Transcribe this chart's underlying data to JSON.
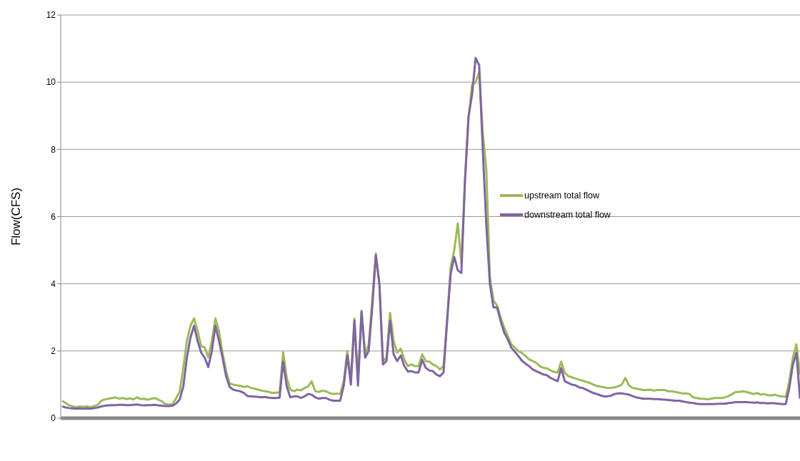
{
  "chart_data": {
    "type": "line",
    "ylabel": "Flow(CFS)",
    "ylim": [
      0,
      12
    ],
    "yticks": [
      0,
      2,
      4,
      6,
      8,
      10,
      12
    ],
    "grid": "y",
    "legend": "right",
    "tick_labels": "y",
    "marker": "none",
    "line_style": "solid",
    "categories": [
      null,
      null,
      null,
      null,
      null,
      null,
      null,
      null,
      null,
      null,
      null,
      null,
      null,
      null,
      null,
      null,
      null,
      null,
      null,
      null,
      null,
      null,
      null,
      null,
      null,
      null,
      null,
      null,
      null,
      null,
      null,
      null,
      null,
      null,
      null,
      null,
      null,
      null,
      null,
      null,
      null,
      null,
      null,
      null,
      null,
      null,
      null,
      null,
      null,
      null,
      null,
      null,
      null,
      null,
      null,
      null,
      null,
      null,
      null,
      null,
      null,
      null,
      null,
      null,
      null,
      null,
      null,
      null,
      null,
      null,
      null,
      null,
      null,
      null,
      null,
      null,
      null,
      null,
      null,
      null,
      null,
      null,
      null,
      null,
      null,
      null,
      null,
      null,
      null,
      null,
      null,
      null,
      null,
      null,
      null,
      null,
      null,
      null,
      null,
      null,
      null,
      null,
      null,
      null,
      null,
      null,
      null,
      null,
      null,
      null,
      null,
      null,
      null,
      null,
      null,
      null,
      null,
      null,
      null,
      null,
      null,
      null,
      null,
      null,
      null,
      null,
      null,
      null,
      null,
      null,
      null,
      null,
      null,
      null,
      null,
      null,
      null,
      null,
      null,
      null,
      null,
      null,
      null,
      null,
      null,
      null,
      null,
      null,
      null,
      null,
      null,
      null,
      null,
      null,
      null,
      null,
      null,
      null,
      null,
      null,
      null,
      null,
      null,
      null,
      null,
      null,
      null,
      null,
      null,
      null,
      null,
      null,
      null,
      null,
      null,
      null,
      null,
      null,
      null,
      null,
      null,
      null,
      null,
      null,
      null,
      null,
      null,
      null,
      null,
      null,
      null,
      null,
      null,
      null,
      null,
      null,
      null,
      null,
      null,
      null,
      null,
      null,
      null,
      null,
      null,
      null,
      null,
      null
    ],
    "series": [
      {
        "name": "upstream total flow",
        "color": "#9bbb59",
        "values": [
          0.52,
          0.45,
          0.38,
          0.35,
          0.33,
          0.35,
          0.34,
          0.35,
          0.33,
          0.36,
          0.4,
          0.52,
          0.56,
          0.58,
          0.6,
          0.62,
          0.58,
          0.6,
          0.57,
          0.59,
          0.56,
          0.62,
          0.57,
          0.58,
          0.55,
          0.58,
          0.6,
          0.55,
          0.5,
          0.42,
          0.4,
          0.42,
          0.6,
          0.8,
          1.5,
          2.3,
          2.75,
          2.97,
          2.6,
          2.15,
          2.1,
          1.81,
          2.3,
          2.97,
          2.6,
          1.94,
          1.4,
          1.03,
          1.0,
          0.98,
          0.96,
          0.93,
          0.95,
          0.9,
          0.88,
          0.85,
          0.82,
          0.8,
          0.78,
          0.75,
          0.76,
          0.77,
          1.97,
          1.2,
          0.85,
          0.8,
          0.85,
          0.83,
          0.9,
          0.94,
          1.1,
          0.8,
          0.78,
          0.82,
          0.8,
          0.75,
          0.72,
          0.73,
          0.72,
          1.1,
          2.0,
          1.16,
          2.97,
          1.16,
          3.2,
          1.9,
          2.2,
          3.5,
          4.9,
          4.0,
          1.7,
          1.8,
          3.13,
          2.3,
          1.95,
          2.07,
          1.75,
          1.55,
          1.6,
          1.55,
          1.55,
          1.9,
          1.7,
          1.68,
          1.6,
          1.55,
          1.45,
          1.55,
          2.9,
          4.5,
          5.0,
          5.8,
          4.6,
          7.04,
          8.9,
          9.92,
          10.0,
          10.3,
          8.5,
          7.4,
          4.2,
          3.5,
          3.36,
          3.0,
          2.7,
          2.45,
          2.2,
          2.1,
          2.0,
          1.94,
          1.85,
          1.75,
          1.7,
          1.65,
          1.55,
          1.5,
          1.48,
          1.42,
          1.38,
          1.36,
          1.68,
          1.35,
          1.25,
          1.22,
          1.18,
          1.15,
          1.12,
          1.08,
          1.05,
          1.0,
          0.96,
          0.94,
          0.92,
          0.9,
          0.9,
          0.92,
          0.95,
          1.0,
          1.2,
          0.98,
          0.9,
          0.88,
          0.86,
          0.84,
          0.84,
          0.85,
          0.82,
          0.84,
          0.84,
          0.84,
          0.8,
          0.8,
          0.78,
          0.76,
          0.74,
          0.74,
          0.72,
          0.62,
          0.6,
          0.58,
          0.58,
          0.56,
          0.58,
          0.6,
          0.6,
          0.6,
          0.62,
          0.66,
          0.72,
          0.78,
          0.78,
          0.8,
          0.78,
          0.75,
          0.72,
          0.75,
          0.7,
          0.72,
          0.68,
          0.68,
          0.7,
          0.66,
          0.65,
          0.63,
          1.1,
          1.8,
          2.2,
          1.29
        ]
      },
      {
        "name": "downstream total flow",
        "color": "#8064a2",
        "values": [
          0.35,
          0.32,
          0.3,
          0.29,
          0.28,
          0.29,
          0.28,
          0.29,
          0.28,
          0.3,
          0.32,
          0.35,
          0.37,
          0.38,
          0.39,
          0.39,
          0.4,
          0.4,
          0.39,
          0.39,
          0.4,
          0.41,
          0.39,
          0.38,
          0.39,
          0.39,
          0.4,
          0.38,
          0.37,
          0.36,
          0.36,
          0.37,
          0.44,
          0.56,
          0.95,
          1.8,
          2.4,
          2.75,
          2.3,
          1.95,
          1.8,
          1.52,
          2.0,
          2.75,
          2.3,
          1.8,
          1.25,
          0.93,
          0.85,
          0.82,
          0.8,
          0.75,
          0.66,
          0.65,
          0.64,
          0.63,
          0.62,
          0.63,
          0.61,
          0.6,
          0.6,
          0.61,
          1.68,
          0.95,
          0.62,
          0.65,
          0.65,
          0.6,
          0.65,
          0.72,
          0.7,
          0.62,
          0.58,
          0.6,
          0.6,
          0.55,
          0.52,
          0.52,
          0.52,
          0.97,
          1.87,
          1.0,
          2.9,
          0.97,
          3.17,
          1.8,
          2.0,
          3.3,
          4.85,
          4.0,
          1.6,
          1.7,
          2.9,
          1.9,
          1.7,
          1.87,
          1.55,
          1.39,
          1.4,
          1.36,
          1.36,
          1.74,
          1.5,
          1.42,
          1.4,
          1.3,
          1.25,
          1.36,
          2.9,
          4.3,
          4.8,
          4.4,
          4.32,
          7.04,
          8.97,
          9.63,
          10.72,
          10.5,
          8.0,
          5.75,
          4.0,
          3.3,
          3.3,
          2.9,
          2.55,
          2.35,
          2.1,
          1.98,
          1.85,
          1.71,
          1.62,
          1.55,
          1.45,
          1.4,
          1.35,
          1.3,
          1.28,
          1.2,
          1.15,
          1.1,
          1.49,
          1.1,
          1.05,
          1.0,
          0.98,
          0.92,
          0.9,
          0.85,
          0.8,
          0.75,
          0.72,
          0.68,
          0.65,
          0.65,
          0.67,
          0.72,
          0.74,
          0.74,
          0.72,
          0.7,
          0.66,
          0.62,
          0.6,
          0.58,
          0.58,
          0.58,
          0.57,
          0.57,
          0.56,
          0.55,
          0.54,
          0.53,
          0.52,
          0.52,
          0.5,
          0.48,
          0.46,
          0.45,
          0.43,
          0.42,
          0.42,
          0.42,
          0.42,
          0.42,
          0.43,
          0.43,
          0.43,
          0.45,
          0.46,
          0.48,
          0.48,
          0.48,
          0.48,
          0.47,
          0.46,
          0.47,
          0.45,
          0.45,
          0.44,
          0.45,
          0.44,
          0.43,
          0.42,
          0.42,
          0.9,
          1.6,
          1.94,
          0.58
        ]
      }
    ]
  }
}
